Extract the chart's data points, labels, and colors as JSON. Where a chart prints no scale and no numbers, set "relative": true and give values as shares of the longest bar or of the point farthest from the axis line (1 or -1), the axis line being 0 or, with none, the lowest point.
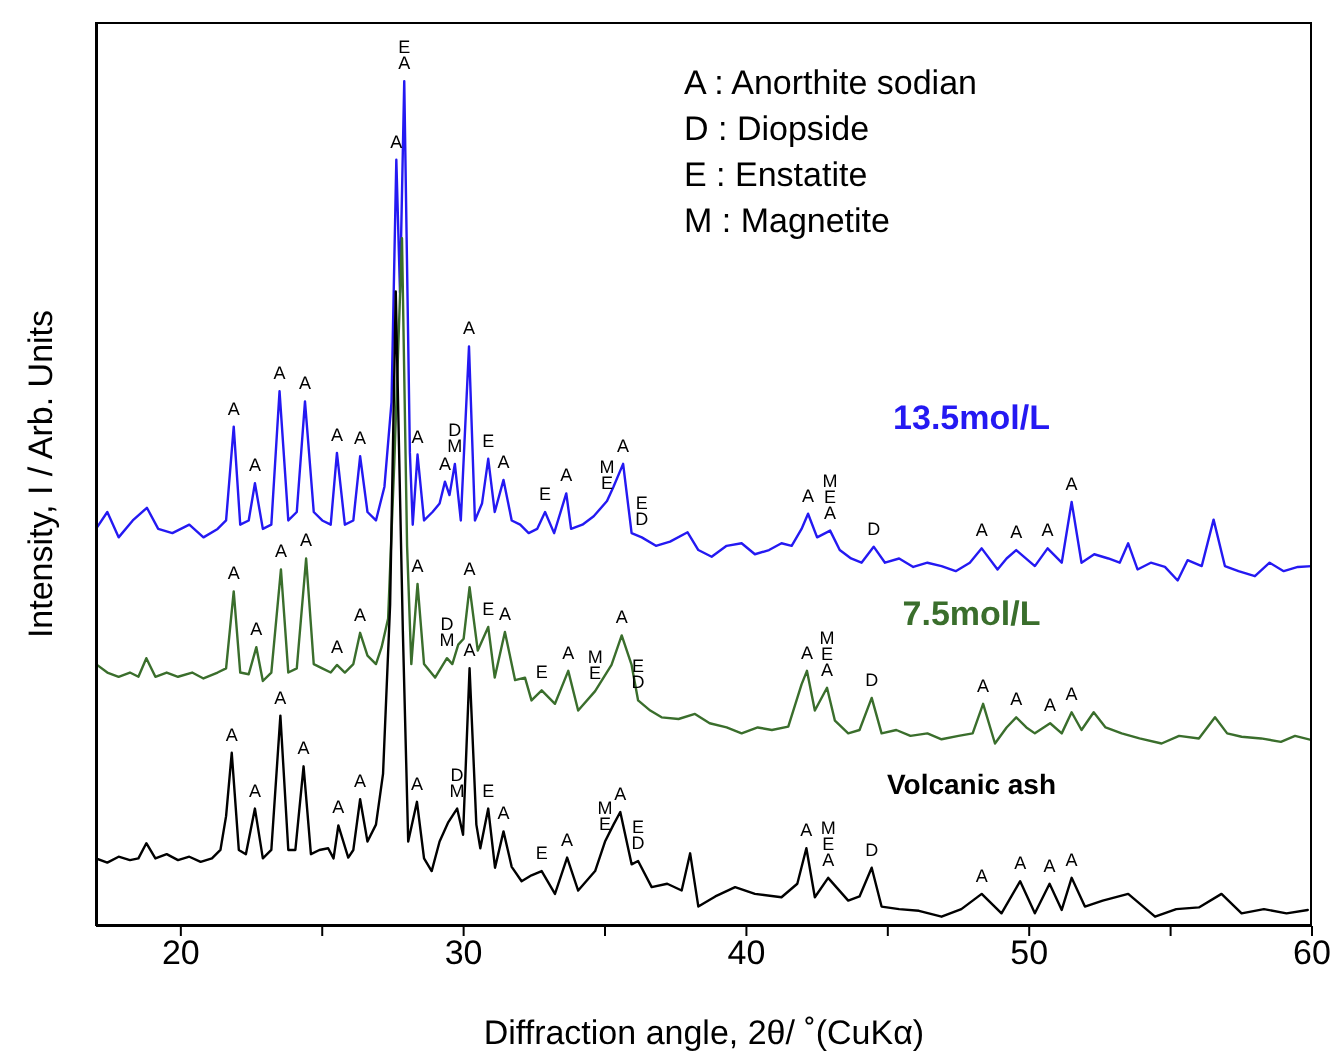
{
  "chart_data": {
    "type": "line",
    "relative": true,
    "xlabel": "Diffraction angle, 2θ/ ˚(CuKα)",
    "ylabel": "Intensity, I / Arb. Units",
    "xlim": [
      17,
      60
    ],
    "xticks": [
      20,
      {
        "value": 25,
        "label": null
      },
      30,
      {
        "value": 35,
        "label": null
      },
      40,
      {
        "value": 45,
        "label": null
      },
      50,
      {
        "value": 55,
        "label": null
      },
      60
    ],
    "marker": "none",
    "line_style": "solid",
    "series": [
      {
        "name": "13.5mol/L",
        "color": "#2419f2",
        "x": [
          17.0,
          17.4,
          17.8,
          18.3,
          18.8,
          19.2,
          19.7,
          20.3,
          20.8,
          21.3,
          21.6,
          21.87,
          22.1,
          22.4,
          22.62,
          22.9,
          23.2,
          23.49,
          23.8,
          24.1,
          24.39,
          24.7,
          25.0,
          25.3,
          25.52,
          25.8,
          26.1,
          26.34,
          26.6,
          26.9,
          27.2,
          27.45,
          27.62,
          27.75,
          27.9,
          28.1,
          28.2,
          28.37,
          28.6,
          28.9,
          29.15,
          29.34,
          29.5,
          29.69,
          29.9,
          30.19,
          30.4,
          30.65,
          30.87,
          31.1,
          31.41,
          31.7,
          32.0,
          32.3,
          32.6,
          32.88,
          33.2,
          33.63,
          33.8,
          34.2,
          34.6,
          35.07,
          35.3,
          35.64,
          35.94,
          36.3,
          36.8,
          37.3,
          37.92,
          38.3,
          38.77,
          39.3,
          39.83,
          40.3,
          40.8,
          41.24,
          41.6,
          41.95,
          42.18,
          42.5,
          42.96,
          43.3,
          43.7,
          44.07,
          44.5,
          44.9,
          45.4,
          45.9,
          46.4,
          46.9,
          47.4,
          47.9,
          48.32,
          48.88,
          49.2,
          49.54,
          50.2,
          50.65,
          51.15,
          51.5,
          51.85,
          52.3,
          52.8,
          53.2,
          53.5,
          53.83,
          54.3,
          54.8,
          55.25,
          55.6,
          56.1,
          56.52,
          56.92,
          57.4,
          57.98,
          58.5,
          59.0,
          59.5,
          60.0
        ],
        "values": [
          0.47,
          0.49,
          0.46,
          0.48,
          0.495,
          0.47,
          0.465,
          0.475,
          0.46,
          0.47,
          0.48,
          0.591,
          0.475,
          0.48,
          0.524,
          0.47,
          0.475,
          0.633,
          0.48,
          0.49,
          0.621,
          0.49,
          0.48,
          0.475,
          0.56,
          0.475,
          0.48,
          0.556,
          0.49,
          0.48,
          0.52,
          0.62,
          0.907,
          0.75,
          1.0,
          0.56,
          0.475,
          0.558,
          0.48,
          0.49,
          0.5,
          0.526,
          0.51,
          0.547,
          0.48,
          0.686,
          0.48,
          0.5,
          0.553,
          0.49,
          0.528,
          0.48,
          0.475,
          0.465,
          0.47,
          0.49,
          0.465,
          0.512,
          0.47,
          0.475,
          0.485,
          0.503,
          0.52,
          0.547,
          0.465,
          0.46,
          0.45,
          0.455,
          0.466,
          0.445,
          0.437,
          0.45,
          0.453,
          0.44,
          0.445,
          0.453,
          0.45,
          0.47,
          0.488,
          0.46,
          0.468,
          0.445,
          0.435,
          0.43,
          0.449,
          0.43,
          0.435,
          0.425,
          0.43,
          0.426,
          0.42,
          0.43,
          0.447,
          0.422,
          0.435,
          0.445,
          0.426,
          0.447,
          0.43,
          0.502,
          0.43,
          0.44,
          0.435,
          0.43,
          0.453,
          0.422,
          0.43,
          0.425,
          0.409,
          0.433,
          0.426,
          0.481,
          0.426,
          0.42,
          0.414,
          0.43,
          0.42,
          0.425,
          0.426
        ]
      },
      {
        "name": "7.5mol/L",
        "color": "#3a6e2c",
        "x": [
          17.0,
          17.4,
          17.8,
          18.2,
          18.5,
          18.78,
          19.1,
          19.5,
          19.9,
          20.4,
          20.8,
          21.3,
          21.6,
          21.87,
          22.1,
          22.4,
          22.67,
          22.9,
          23.2,
          23.54,
          23.8,
          24.1,
          24.43,
          24.7,
          25.0,
          25.3,
          25.52,
          25.8,
          26.1,
          26.34,
          26.6,
          26.9,
          27.1,
          27.33,
          27.55,
          27.82,
          28.0,
          28.15,
          28.37,
          28.6,
          28.99,
          29.41,
          29.6,
          29.81,
          30.0,
          30.21,
          30.5,
          30.87,
          31.1,
          31.46,
          31.82,
          32.17,
          32.4,
          32.76,
          33.23,
          33.7,
          34.05,
          34.65,
          35.23,
          35.59,
          35.94,
          36.17,
          36.6,
          37.0,
          37.6,
          38.18,
          38.7,
          39.3,
          39.83,
          40.4,
          40.9,
          41.48,
          41.95,
          42.14,
          42.42,
          42.85,
          43.13,
          43.6,
          44.0,
          44.43,
          44.78,
          45.3,
          45.8,
          46.4,
          46.9,
          47.5,
          48.0,
          48.37,
          48.79,
          49.2,
          49.54,
          49.9,
          50.2,
          50.74,
          51.15,
          51.5,
          51.85,
          52.28,
          52.7,
          53.27,
          53.9,
          54.68,
          55.3,
          56.0,
          56.57,
          57.0,
          57.51,
          58.2,
          58.9,
          59.4,
          60.0
        ],
        "values": [
          0.31,
          0.3,
          0.295,
          0.3,
          0.295,
          0.317,
          0.295,
          0.3,
          0.295,
          0.3,
          0.293,
          0.3,
          0.305,
          0.396,
          0.3,
          0.298,
          0.33,
          0.29,
          0.3,
          0.422,
          0.3,
          0.305,
          0.435,
          0.31,
          0.305,
          0.3,
          0.309,
          0.3,
          0.31,
          0.347,
          0.32,
          0.31,
          0.33,
          0.364,
          0.55,
          0.814,
          0.45,
          0.31,
          0.405,
          0.31,
          0.294,
          0.317,
          0.31,
          0.333,
          0.34,
          0.401,
          0.326,
          0.354,
          0.294,
          0.348,
          0.291,
          0.294,
          0.267,
          0.279,
          0.263,
          0.302,
          0.255,
          0.278,
          0.309,
          0.344,
          0.309,
          0.267,
          0.255,
          0.247,
          0.245,
          0.251,
          0.24,
          0.235,
          0.228,
          0.235,
          0.232,
          0.236,
          0.286,
          0.302,
          0.255,
          0.282,
          0.243,
          0.228,
          0.232,
          0.27,
          0.228,
          0.232,
          0.225,
          0.228,
          0.221,
          0.225,
          0.228,
          0.263,
          0.216,
          0.235,
          0.247,
          0.235,
          0.228,
          0.24,
          0.228,
          0.253,
          0.232,
          0.253,
          0.235,
          0.228,
          0.222,
          0.216,
          0.225,
          0.222,
          0.247,
          0.228,
          0.224,
          0.222,
          0.218,
          0.225,
          0.22
        ]
      },
      {
        "name": "Volcanic ash",
        "color": "#000000",
        "x": [
          17.0,
          17.4,
          17.8,
          18.2,
          18.5,
          18.78,
          19.1,
          19.5,
          19.9,
          20.3,
          20.7,
          21.1,
          21.4,
          21.6,
          21.8,
          22.05,
          22.3,
          22.62,
          22.9,
          23.2,
          23.52,
          23.8,
          24.05,
          24.34,
          24.6,
          24.9,
          25.21,
          25.4,
          25.57,
          25.92,
          26.1,
          26.34,
          26.6,
          26.9,
          27.15,
          27.4,
          27.6,
          27.85,
          28.04,
          28.35,
          28.6,
          28.87,
          29.15,
          29.46,
          29.77,
          29.98,
          30.21,
          30.45,
          30.59,
          30.87,
          31.11,
          31.41,
          31.7,
          32.05,
          32.4,
          32.76,
          33.23,
          33.66,
          34.05,
          34.65,
          35.0,
          35.3,
          35.54,
          35.94,
          36.17,
          36.65,
          37.2,
          37.71,
          38.01,
          38.3,
          38.9,
          39.6,
          40.3,
          41.24,
          41.8,
          42.12,
          42.42,
          42.89,
          43.6,
          44.0,
          44.43,
          44.78,
          45.4,
          46.1,
          46.9,
          47.6,
          48.32,
          49.02,
          49.68,
          50.2,
          50.72,
          51.15,
          51.5,
          51.97,
          52.6,
          53.5,
          54.45,
          55.2,
          56.0,
          56.8,
          57.51,
          58.3,
          59.1,
          59.85
        ],
        "values": [
          0.08,
          0.075,
          0.082,
          0.078,
          0.08,
          0.098,
          0.08,
          0.085,
          0.078,
          0.082,
          0.076,
          0.08,
          0.09,
          0.13,
          0.205,
          0.09,
          0.085,
          0.139,
          0.08,
          0.09,
          0.249,
          0.09,
          0.09,
          0.189,
          0.085,
          0.09,
          0.092,
          0.08,
          0.119,
          0.081,
          0.09,
          0.15,
          0.1,
          0.12,
          0.18,
          0.38,
          0.751,
          0.35,
          0.1,
          0.147,
          0.08,
          0.065,
          0.1,
          0.123,
          0.139,
          0.108,
          0.305,
          0.12,
          0.092,
          0.139,
          0.069,
          0.112,
          0.07,
          0.053,
          0.06,
          0.065,
          0.038,
          0.081,
          0.042,
          0.065,
          0.1,
          0.12,
          0.135,
          0.073,
          0.077,
          0.046,
          0.05,
          0.042,
          0.086,
          0.023,
          0.035,
          0.046,
          0.038,
          0.034,
          0.05,
          0.092,
          0.034,
          0.057,
          0.03,
          0.035,
          0.069,
          0.023,
          0.02,
          0.018,
          0.011,
          0.02,
          0.038,
          0.015,
          0.053,
          0.015,
          0.05,
          0.019,
          0.057,
          0.023,
          0.03,
          0.038,
          0.011,
          0.02,
          0.022,
          0.038,
          0.015,
          0.02,
          0.015,
          0.019
        ]
      }
    ],
    "annotations": [
      "A : Anorthite sodian",
      "D : Diopside",
      "E : Enstatite",
      "M : Magnetite",
      {
        "text": "A",
        "x": 21.87,
        "y": 0.591
      },
      {
        "text": "A",
        "x": 22.62,
        "y": 0.524
      },
      {
        "text": "A",
        "x": 23.49,
        "y": 0.633
      },
      {
        "text": "A",
        "x": 24.39,
        "y": 0.621
      },
      {
        "text": "A",
        "x": 25.52,
        "y": 0.56
      },
      {
        "text": "A",
        "x": 26.34,
        "y": 0.556
      },
      {
        "text": "A",
        "x": 27.62,
        "y": 0.907
      },
      {
        "text": "E",
        "x": 27.9,
        "y": 1.0
      },
      {
        "text": "A",
        "x": 27.9,
        "y": 1.0
      },
      {
        "text": "A",
        "x": 28.37,
        "y": 0.558
      },
      {
        "text": "A",
        "x": 29.34,
        "y": 0.526
      },
      {
        "text": "D",
        "x": 29.69,
        "y": 0.547
      },
      {
        "text": "M",
        "x": 29.69,
        "y": 0.547
      },
      {
        "text": "A",
        "x": 30.19,
        "y": 0.686
      },
      {
        "text": "E",
        "x": 30.87,
        "y": 0.553
      },
      {
        "text": "A",
        "x": 31.41,
        "y": 0.528
      },
      {
        "text": "E",
        "x": 32.88,
        "y": 0.49
      },
      {
        "text": "A",
        "x": 33.63,
        "y": 0.512
      },
      {
        "text": "M",
        "x": 35.07,
        "y": 0.503
      },
      {
        "text": "E",
        "x": 35.07,
        "y": 0.503
      },
      {
        "text": "A",
        "x": 35.64,
        "y": 0.547
      },
      {
        "text": "E",
        "x": 36.3,
        "y": 0.46
      },
      {
        "text": "D",
        "x": 36.3,
        "y": 0.46
      },
      {
        "text": "A",
        "x": 42.18,
        "y": 0.488
      },
      {
        "text": "M",
        "x": 42.96,
        "y": 0.468
      },
      {
        "text": "E",
        "x": 42.96,
        "y": 0.468
      },
      {
        "text": "A",
        "x": 42.96,
        "y": 0.468
      },
      {
        "text": "D",
        "x": 44.5,
        "y": 0.449
      },
      {
        "text": "A",
        "x": 48.32,
        "y": 0.447
      },
      {
        "text": "A",
        "x": 49.54,
        "y": 0.445
      },
      {
        "text": "A",
        "x": 50.65,
        "y": 0.447
      },
      {
        "text": "A",
        "x": 51.5,
        "y": 0.502
      },
      {
        "text": "A",
        "x": 21.87,
        "y": 0.396
      },
      {
        "text": "A",
        "x": 22.67,
        "y": 0.33
      },
      {
        "text": "A",
        "x": 23.54,
        "y": 0.422
      },
      {
        "text": "A",
        "x": 24.43,
        "y": 0.435
      },
      {
        "text": "A",
        "x": 25.52,
        "y": 0.309
      },
      {
        "text": "A",
        "x": 26.34,
        "y": 0.347
      },
      {
        "text": "A",
        "x": 28.37,
        "y": 0.405
      },
      {
        "text": "D",
        "x": 29.41,
        "y": 0.317
      },
      {
        "text": "M",
        "x": 29.41,
        "y": 0.317
      },
      {
        "text": "A",
        "x": 30.21,
        "y": 0.401
      },
      {
        "text": "E",
        "x": 30.87,
        "y": 0.354
      },
      {
        "text": "A",
        "x": 31.46,
        "y": 0.348
      },
      {
        "text": "E",
        "x": 32.76,
        "y": 0.279
      },
      {
        "text": "A",
        "x": 33.7,
        "y": 0.302
      },
      {
        "text": "M",
        "x": 34.65,
        "y": 0.278
      },
      {
        "text": "E",
        "x": 34.65,
        "y": 0.278
      },
      {
        "text": "A",
        "x": 35.59,
        "y": 0.344
      },
      {
        "text": "E",
        "x": 36.17,
        "y": 0.267
      },
      {
        "text": "D",
        "x": 36.17,
        "y": 0.267
      },
      {
        "text": "A",
        "x": 42.14,
        "y": 0.302
      },
      {
        "text": "M",
        "x": 42.85,
        "y": 0.282
      },
      {
        "text": "E",
        "x": 42.85,
        "y": 0.282
      },
      {
        "text": "A",
        "x": 42.85,
        "y": 0.282
      },
      {
        "text": "D",
        "x": 44.43,
        "y": 0.27
      },
      {
        "text": "A",
        "x": 48.37,
        "y": 0.263
      },
      {
        "text": "A",
        "x": 49.54,
        "y": 0.247
      },
      {
        "text": "A",
        "x": 50.74,
        "y": 0.24
      },
      {
        "text": "A",
        "x": 51.5,
        "y": 0.253
      },
      {
        "text": "A",
        "x": 21.8,
        "y": 0.205
      },
      {
        "text": "A",
        "x": 22.62,
        "y": 0.139
      },
      {
        "text": "A",
        "x": 23.52,
        "y": 0.249
      },
      {
        "text": "A",
        "x": 24.34,
        "y": 0.189
      },
      {
        "text": "A",
        "x": 25.57,
        "y": 0.119
      },
      {
        "text": "A",
        "x": 26.34,
        "y": 0.15
      },
      {
        "text": "A",
        "x": 28.35,
        "y": 0.147
      },
      {
        "text": "D",
        "x": 29.77,
        "y": 0.139
      },
      {
        "text": "M",
        "x": 29.77,
        "y": 0.139
      },
      {
        "text": "A",
        "x": 30.21,
        "y": 0.305
      },
      {
        "text": "E",
        "x": 30.87,
        "y": 0.139
      },
      {
        "text": "A",
        "x": 31.41,
        "y": 0.112
      },
      {
        "text": "E",
        "x": 32.76,
        "y": 0.065
      },
      {
        "text": "A",
        "x": 33.66,
        "y": 0.081
      },
      {
        "text": "M",
        "x": 35.0,
        "y": 0.1
      },
      {
        "text": "E",
        "x": 35.0,
        "y": 0.1
      },
      {
        "text": "A",
        "x": 35.54,
        "y": 0.135
      },
      {
        "text": "E",
        "x": 36.17,
        "y": 0.077
      },
      {
        "text": "D",
        "x": 36.17,
        "y": 0.077
      },
      {
        "text": "A",
        "x": 42.12,
        "y": 0.092
      },
      {
        "text": "M",
        "x": 42.89,
        "y": 0.057
      },
      {
        "text": "E",
        "x": 42.89,
        "y": 0.057
      },
      {
        "text": "A",
        "x": 42.89,
        "y": 0.057
      },
      {
        "text": "D",
        "x": 44.43,
        "y": 0.069
      },
      {
        "text": "A",
        "x": 48.32,
        "y": 0.038
      },
      {
        "text": "A",
        "x": 49.68,
        "y": 0.053
      },
      {
        "text": "A",
        "x": 50.72,
        "y": 0.05
      },
      {
        "text": "A",
        "x": 51.5,
        "y": 0.057
      }
    ]
  }
}
